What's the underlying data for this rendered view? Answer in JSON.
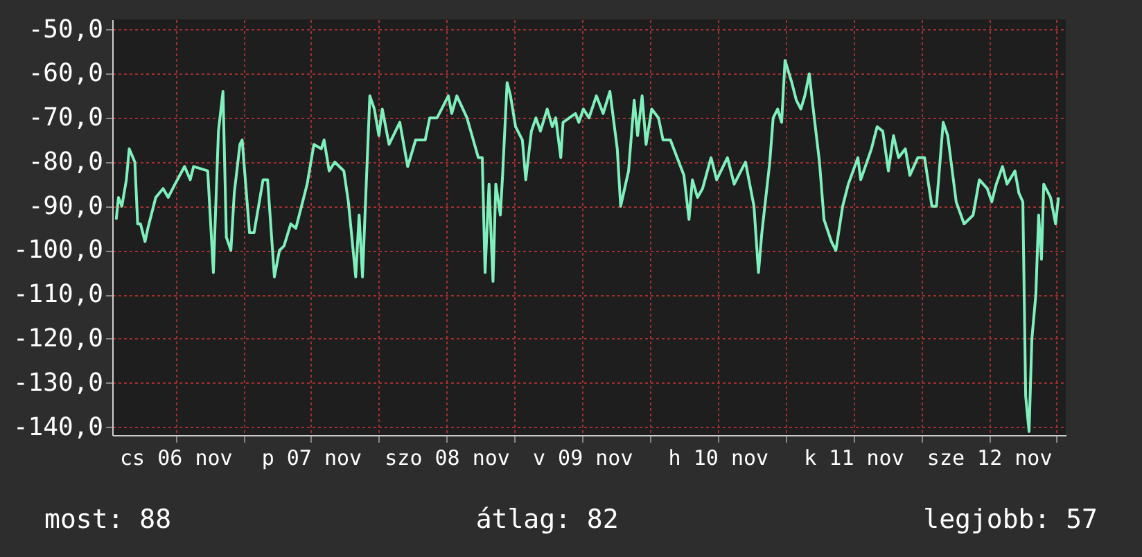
{
  "chart_data": {
    "type": "line",
    "x": [
      "--11-06T01:30",
      "--11-06T01:54",
      "--11-06T02:30",
      "--11-06T03:18",
      "--11-06T03:48",
      "--11-06T04:48",
      "--11-06T05:18",
      "--11-06T05:48",
      "--11-06T06:36",
      "--11-06T07:06",
      "--11-06T08:30",
      "--11-06T09:48",
      "--11-06T10:42",
      "--11-06T11:54",
      "--11-06T13:36",
      "--11-06T14:36",
      "--11-06T15:12",
      "--11-06T17:42",
      "--11-06T18:42",
      "--11-06T19:36",
      "--11-06T20:24",
      "--11-06T21:00",
      "--11-06T21:48",
      "--11-06T22:24",
      "--11-06T23:24",
      "--11-06T23:48",
      "--11-07T01:06",
      "--11-07T01:54",
      "--11-07T03:30",
      "--11-07T04:18",
      "--11-07T05:30",
      "--11-07T06:24",
      "--11-07T07:12",
      "--11-07T08:24",
      "--11-07T09:18",
      "--11-07T10:42",
      "--11-07T11:18",
      "--11-07T12:30",
      "--11-07T13:48",
      "--11-07T14:18",
      "--11-07T15:12",
      "--11-07T16:12",
      "--11-07T17:48",
      "--11-07T18:36",
      "--11-07T19:54",
      "--11-07T20:30",
      "--11-07T21:06",
      "--11-07T21:42",
      "--11-07T22:24",
      "--11-07T23:12",
      "--11-08T00:00",
      "--11-08T00:36",
      "--11-08T01:48",
      "--11-08T03:42",
      "--11-08T05:06",
      "--11-08T06:30",
      "--11-08T08:12",
      "--11-08T09:00",
      "--11-08T10:18",
      "--11-08T11:30",
      "--11-08T12:18",
      "--11-08T12:54",
      "--11-08T13:48",
      "--11-08T15:36",
      "--11-08T17:36",
      "--11-08T18:18",
      "--11-08T18:48",
      "--11-08T19:30",
      "--11-08T20:12",
      "--11-08T20:42",
      "--11-08T21:30",
      "--11-08T21:54",
      "--11-08T22:42",
      "--11-08T23:18",
      "--11-09T00:12",
      "--11-09T01:24",
      "--11-09T02:00",
      "--11-09T03:00",
      "--11-09T03:48",
      "--11-09T04:36",
      "--11-09T05:48",
      "--11-09T06:42",
      "--11-09T07:18",
      "--11-09T08:12",
      "--11-09T08:36",
      "--11-09T10:48",
      "--11-09T11:24",
      "--11-09T12:12",
      "--11-09T13:12",
      "--11-09T14:30",
      "--11-09T15:42",
      "--11-09T16:54",
      "--11-09T18:12",
      "--11-09T18:48",
      "--11-09T20:12",
      "--11-09T21:12",
      "--11-09T21:48",
      "--11-09T22:36",
      "--11-09T23:18",
      "--11-10T00:18",
      "--11-10T01:30",
      "--11-10T02:18",
      "--11-10T03:36",
      "--11-10T04:48",
      "--11-10T06:00",
      "--11-10T06:54",
      "--11-10T07:30",
      "--11-10T08:24",
      "--11-10T09:18",
      "--11-10T10:48",
      "--11-10T11:48",
      "--11-10T13:42",
      "--11-10T14:54",
      "--11-10T16:54",
      "--11-10T17:30",
      "--11-10T18:24",
      "--11-10T19:12",
      "--11-10T19:48",
      "--11-10T21:12",
      "--11-10T21:48",
      "--11-10T22:36",
      "--11-10T23:18",
      "--11-10T23:54",
      "--11-11T01:06",
      "--11-11T01:54",
      "--11-11T02:42",
      "--11-11T03:24",
      "--11-11T04:12",
      "--11-11T04:48",
      "--11-11T06:00",
      "--11-11T06:48",
      "--11-11T08:06",
      "--11-11T08:54",
      "--11-11T10:06",
      "--11-11T11:06",
      "--11-11T12:48",
      "--11-11T13:18",
      "--11-11T15:12",
      "--11-11T16:12",
      "--11-11T17:12",
      "--11-11T18:12",
      "--11-11T19:06",
      "--11-11T20:00",
      "--11-11T21:12",
      "--11-11T22:00",
      "--11-11T23:24",
      "--11-12T00:36",
      "--11-12T01:54",
      "--11-12T02:42",
      "--11-12T03:54",
      "--11-12T04:42",
      "--11-12T06:12",
      "--11-12T07:36",
      "--11-12T09:12",
      "--11-12T10:18",
      "--11-12T11:42",
      "--11-12T12:30",
      "--11-12T13:18",
      "--11-12T14:24",
      "--11-12T15:12",
      "--11-12T16:36",
      "--11-12T17:18",
      "--11-12T18:00",
      "--11-12T18:30",
      "--11-12T19:06",
      "--11-12T19:36",
      "--11-12T20:18",
      "--11-12T20:48",
      "--11-12T21:18",
      "--11-12T21:42",
      "--11-12T22:54",
      "--11-12T23:48",
      "--11-13T00:18"
    ],
    "series": [
      {
        "color": "#7ff0bc",
        "values": [
          -93,
          -88,
          -90,
          -84,
          -77,
          -80,
          -94,
          -94,
          -98,
          -95,
          -88,
          -86,
          -88,
          -85,
          -81,
          -84,
          -81,
          -82,
          -105,
          -73,
          -64,
          -97,
          -100,
          -87,
          -76,
          -75,
          -96,
          -96,
          -84,
          -84,
          -106,
          -100,
          -99,
          -94,
          -95,
          -88,
          -85,
          -76,
          -77,
          -75,
          -82,
          -80,
          -82,
          -89,
          -106,
          -92,
          -106,
          -87,
          -65,
          -68,
          -74,
          -68,
          -76,
          -71,
          -81,
          -75,
          -75,
          -70,
          -70,
          -67,
          -65,
          -69,
          -65,
          -70,
          -79,
          -79,
          -105,
          -85,
          -107,
          -85,
          -92,
          -83,
          -62,
          -65,
          -72,
          -75,
          -84,
          -73,
          -70,
          -73,
          -68,
          -72,
          -70,
          -79,
          -71,
          -69,
          -71,
          -68,
          -70,
          -65,
          -69,
          -64,
          -77,
          -90,
          -82,
          -66,
          -74,
          -65,
          -76,
          -68,
          -70,
          -75,
          -75,
          -79,
          -83,
          -93,
          -84,
          -88,
          -86,
          -79,
          -84,
          -79,
          -85,
          -80,
          -84,
          -90,
          -105,
          -96,
          -80,
          -70,
          -68,
          -71,
          -57,
          -62,
          -66,
          -68,
          -65,
          -60,
          -67,
          -80,
          -93,
          -98,
          -100,
          -90,
          -85,
          -79,
          -84,
          -77,
          -72,
          -73,
          -82,
          -74,
          -79,
          -77,
          -83,
          -79,
          -79,
          -90,
          -90,
          -71,
          -74,
          -89,
          -94,
          -92,
          -84,
          -86,
          -89,
          -85,
          -81,
          -85,
          -82,
          -87,
          -89,
          -133,
          -141,
          -120,
          -110,
          -92,
          -102,
          -85,
          -88,
          -94,
          -88
        ]
      }
    ],
    "xlim": [
      "--11-06T00:48",
      "--11-13T01:36"
    ],
    "xticks": [
      {
        "value": "--11-06T12:00",
        "label": "cs 06 nov"
      },
      {
        "value": "--11-07T00:00",
        "label": null
      },
      {
        "value": "--11-07T12:00",
        "label": "p 07 nov"
      },
      {
        "value": "--11-08T00:00",
        "label": null
      },
      {
        "value": "--11-08T12:00",
        "label": "szo 08 nov"
      },
      {
        "value": "--11-09T00:00",
        "label": null
      },
      {
        "value": "--11-09T12:00",
        "label": "v 09 nov"
      },
      {
        "value": "--11-10T00:00",
        "label": null
      },
      {
        "value": "--11-10T12:00",
        "label": "h 10 nov"
      },
      {
        "value": "--11-11T00:00",
        "label": null
      },
      {
        "value": "--11-11T12:00",
        "label": "k 11 nov"
      },
      {
        "value": "--11-12T00:00",
        "label": null
      },
      {
        "value": "--11-12T12:00",
        "label": "sze 12 nov"
      },
      {
        "value": "--11-13T00:00",
        "label": null
      }
    ],
    "ylim": [
      -141.8,
      -47.7
    ],
    "yticks": [
      {
        "value": -50,
        "label": "-50,0"
      },
      {
        "value": -60,
        "label": "-60,0"
      },
      {
        "value": -70,
        "label": "-70,0"
      },
      {
        "value": -80,
        "label": "-80,0"
      },
      {
        "value": -90,
        "label": "-90,0"
      },
      {
        "value": -100,
        "label": "-100,0"
      },
      {
        "value": -110,
        "label": "-110,0"
      },
      {
        "value": -120,
        "label": "-120,0"
      },
      {
        "value": -130,
        "label": "-130,0"
      },
      {
        "value": -140,
        "label": "-140,0"
      }
    ],
    "grid": true,
    "marker": "none",
    "line_style": "solid",
    "annotations": [
      "most: 88",
      "átlag: 82",
      "legjobb: 57"
    ]
  }
}
